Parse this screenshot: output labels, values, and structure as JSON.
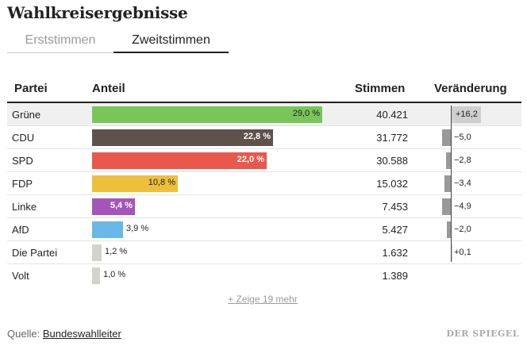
{
  "title": "Wahlkreisergebnisse",
  "tabs": [
    {
      "label": "Erststimmen",
      "active": false
    },
    {
      "label": "Zweitstimmen",
      "active": true
    }
  ],
  "columns": {
    "party": "Partei",
    "share": "Anteil",
    "votes": "Stimmen",
    "change": "Veränderung"
  },
  "rows": [
    {
      "party": "Grüne",
      "share": 29.0,
      "share_label": "29,0 %",
      "votes": "40.421",
      "change": 16.2,
      "change_label": "+16,2",
      "color": "#7ac55a",
      "highlighted": true
    },
    {
      "party": "CDU",
      "share": 22.8,
      "share_label": "22,8 %",
      "votes": "31.772",
      "change": -5.0,
      "change_label": "−5,0",
      "color": "#5e524c"
    },
    {
      "party": "SPD",
      "share": 22.0,
      "share_label": "22,0 %",
      "votes": "30.588",
      "change": -2.8,
      "change_label": "−2,8",
      "color": "#e8584c"
    },
    {
      "party": "FDP",
      "share": 10.8,
      "share_label": "10,8 %",
      "votes": "15.032",
      "change": -3.4,
      "change_label": "−3,4",
      "color": "#eec03a"
    },
    {
      "party": "Linke",
      "share": 5.4,
      "share_label": "5,4 %",
      "votes": "7.453",
      "change": -4.9,
      "change_label": "−4,9",
      "color": "#a456b8"
    },
    {
      "party": "AfD",
      "share": 3.9,
      "share_label": "3,9 %",
      "votes": "5.427",
      "change": -2.0,
      "change_label": "−2,0",
      "color": "#6ab8e8"
    },
    {
      "party": "Die Partei",
      "share": 1.2,
      "share_label": "1,2 %",
      "votes": "1.632",
      "change": 0.1,
      "change_label": "+0,1",
      "color": "#d4d2cc"
    },
    {
      "party": "Volt",
      "share": 1.0,
      "share_label": "1,0 %",
      "votes": "1.389",
      "change": null,
      "change_label": "",
      "color": "#d4d2cc"
    }
  ],
  "show_more": "+ Zeige 19 mehr",
  "source": {
    "prefix": "Quelle:",
    "link": "Bundeswahlleiter"
  },
  "logo": "DER SPIEGEL"
}
